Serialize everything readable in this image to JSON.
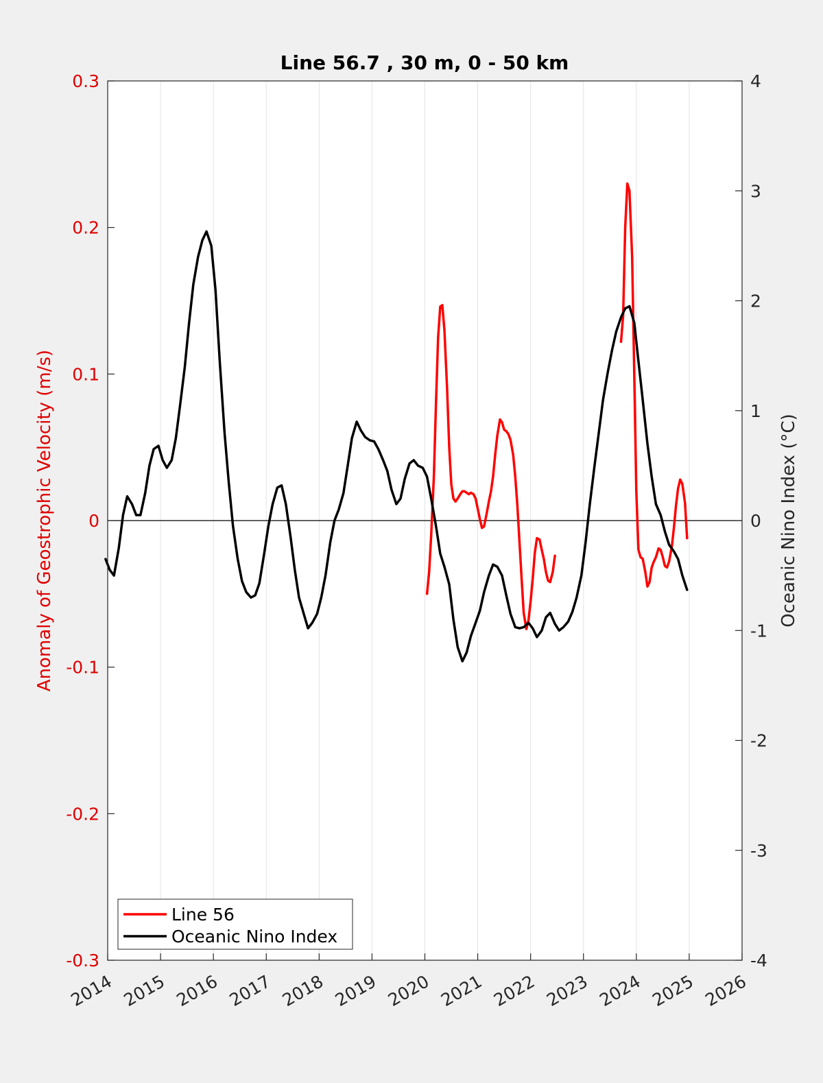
{
  "chart_data": {
    "type": "line",
    "title": "Line 56.7 , 30 m, 0 - 50 km",
    "xlabel": "",
    "ylabel_left": "Anomaly of Geostrophic Velocity (m/s)",
    "ylabel_right": "Oceanic Nino Index (°C)",
    "xlim": [
      2014,
      2026
    ],
    "ylim_left": [
      -0.3,
      0.3
    ],
    "ylim_right": [
      -4,
      4
    ],
    "x_ticks": [
      "2014",
      "2015",
      "2016",
      "2017",
      "2018",
      "2019",
      "2020",
      "2021",
      "2022",
      "2023",
      "2024",
      "2025",
      "2026"
    ],
    "y_ticks_left": [
      "0.3",
      "0.2",
      "0.1",
      "0",
      "-0.1",
      "-0.2",
      "-0.3"
    ],
    "y_ticks_right": [
      "4",
      "3",
      "2",
      "1",
      "0",
      "-1",
      "-2",
      "-3",
      "-4"
    ],
    "grid": "vertical",
    "zero_line": true,
    "legend_position": "bottom-left",
    "colors": {
      "line56": "#ff0000",
      "oni": "#000000",
      "left_axis": "#e00000",
      "right_axis": "#262626"
    },
    "series": [
      {
        "name": "Line 56",
        "axis": "left",
        "color": "#ff0000",
        "points": [
          [
            2020.04,
            -0.05
          ],
          [
            2020.08,
            -0.035
          ],
          [
            2020.12,
            -0.01
          ],
          [
            2020.17,
            0.03
          ],
          [
            2020.21,
            0.08
          ],
          [
            2020.25,
            0.125
          ],
          [
            2020.29,
            0.146
          ],
          [
            2020.33,
            0.147
          ],
          [
            2020.37,
            0.13
          ],
          [
            2020.42,
            0.09
          ],
          [
            2020.46,
            0.05
          ],
          [
            2020.5,
            0.025
          ],
          [
            2020.54,
            0.015
          ],
          [
            2020.58,
            0.013
          ],
          [
            2020.62,
            0.015
          ],
          [
            2020.67,
            0.018
          ],
          [
            2020.71,
            0.02
          ],
          [
            2020.75,
            0.02
          ],
          [
            2020.79,
            0.019
          ],
          [
            2020.83,
            0.018
          ],
          [
            2020.87,
            0.019
          ],
          [
            2020.92,
            0.018
          ],
          [
            2020.96,
            0.015
          ],
          [
            2021.0,
            0.008
          ],
          [
            2021.04,
            0.001
          ],
          [
            2021.08,
            -0.005
          ],
          [
            2021.12,
            -0.004
          ],
          [
            2021.17,
            0.005
          ],
          [
            2021.21,
            0.013
          ],
          [
            2021.25,
            0.02
          ],
          [
            2021.29,
            0.03
          ],
          [
            2021.33,
            0.045
          ],
          [
            2021.37,
            0.058
          ],
          [
            2021.42,
            0.069
          ],
          [
            2021.46,
            0.067
          ],
          [
            2021.5,
            0.062
          ],
          [
            2021.54,
            0.061
          ],
          [
            2021.58,
            0.059
          ],
          [
            2021.62,
            0.055
          ],
          [
            2021.67,
            0.045
          ],
          [
            2021.71,
            0.03
          ],
          [
            2021.75,
            0.01
          ],
          [
            2021.79,
            -0.015
          ],
          [
            2021.83,
            -0.04
          ],
          [
            2021.87,
            -0.063
          ],
          [
            2021.92,
            -0.074
          ],
          [
            2021.96,
            -0.068
          ],
          [
            2022.0,
            -0.055
          ],
          [
            2022.04,
            -0.04
          ],
          [
            2022.08,
            -0.022
          ],
          [
            2022.12,
            -0.012
          ],
          [
            2022.17,
            -0.013
          ],
          [
            2022.21,
            -0.02
          ],
          [
            2022.25,
            -0.026
          ],
          [
            2022.29,
            -0.035
          ],
          [
            2022.33,
            -0.041
          ],
          [
            2022.37,
            -0.042
          ],
          [
            2022.42,
            -0.035
          ],
          [
            2022.46,
            -0.024
          ],
          null,
          [
            2023.71,
            0.122
          ],
          [
            2023.75,
            0.14
          ],
          [
            2023.79,
            0.2
          ],
          [
            2023.83,
            0.23
          ],
          [
            2023.87,
            0.225
          ],
          [
            2023.92,
            0.18
          ],
          [
            2023.96,
            0.1
          ],
          [
            2024.0,
            0.02
          ],
          [
            2024.04,
            -0.02
          ],
          [
            2024.08,
            -0.025
          ],
          [
            2024.12,
            -0.026
          ],
          [
            2024.17,
            -0.035
          ],
          [
            2024.21,
            -0.045
          ],
          [
            2024.25,
            -0.042
          ],
          [
            2024.29,
            -0.032
          ],
          [
            2024.33,
            -0.028
          ],
          [
            2024.37,
            -0.025
          ],
          [
            2024.42,
            -0.019
          ],
          [
            2024.46,
            -0.02
          ],
          [
            2024.5,
            -0.025
          ],
          [
            2024.54,
            -0.031
          ],
          [
            2024.58,
            -0.032
          ],
          [
            2024.62,
            -0.028
          ],
          [
            2024.67,
            -0.018
          ],
          [
            2024.71,
            -0.005
          ],
          [
            2024.75,
            0.01
          ],
          [
            2024.79,
            0.022
          ],
          [
            2024.83,
            0.028
          ],
          [
            2024.87,
            0.025
          ],
          [
            2024.92,
            0.012
          ],
          [
            2024.96,
            -0.012
          ]
        ]
      },
      {
        "name": "Oceanic Nino Index",
        "axis": "right",
        "color": "#000000",
        "points": [
          [
            2013.96,
            -0.35
          ],
          [
            2014.04,
            -0.45
          ],
          [
            2014.12,
            -0.5
          ],
          [
            2014.21,
            -0.25
          ],
          [
            2014.29,
            0.05
          ],
          [
            2014.37,
            0.22
          ],
          [
            2014.46,
            0.15
          ],
          [
            2014.54,
            0.05
          ],
          [
            2014.62,
            0.05
          ],
          [
            2014.71,
            0.25
          ],
          [
            2014.79,
            0.5
          ],
          [
            2014.87,
            0.65
          ],
          [
            2014.96,
            0.68
          ],
          [
            2015.04,
            0.55
          ],
          [
            2015.12,
            0.48
          ],
          [
            2015.21,
            0.55
          ],
          [
            2015.29,
            0.75
          ],
          [
            2015.37,
            1.05
          ],
          [
            2015.46,
            1.4
          ],
          [
            2015.54,
            1.8
          ],
          [
            2015.62,
            2.15
          ],
          [
            2015.71,
            2.4
          ],
          [
            2015.79,
            2.55
          ],
          [
            2015.87,
            2.63
          ],
          [
            2015.96,
            2.5
          ],
          [
            2016.04,
            2.1
          ],
          [
            2016.12,
            1.45
          ],
          [
            2016.21,
            0.8
          ],
          [
            2016.29,
            0.35
          ],
          [
            2016.37,
            -0.05
          ],
          [
            2016.46,
            -0.35
          ],
          [
            2016.54,
            -0.55
          ],
          [
            2016.62,
            -0.65
          ],
          [
            2016.71,
            -0.7
          ],
          [
            2016.79,
            -0.68
          ],
          [
            2016.87,
            -0.57
          ],
          [
            2016.96,
            -0.3
          ],
          [
            2017.04,
            -0.05
          ],
          [
            2017.12,
            0.15
          ],
          [
            2017.21,
            0.3
          ],
          [
            2017.29,
            0.32
          ],
          [
            2017.37,
            0.15
          ],
          [
            2017.46,
            -0.15
          ],
          [
            2017.54,
            -0.45
          ],
          [
            2017.62,
            -0.7
          ],
          [
            2017.71,
            -0.85
          ],
          [
            2017.79,
            -0.98
          ],
          [
            2017.87,
            -0.93
          ],
          [
            2017.96,
            -0.85
          ],
          [
            2018.04,
            -0.7
          ],
          [
            2018.12,
            -0.5
          ],
          [
            2018.21,
            -0.2
          ],
          [
            2018.29,
            0.0
          ],
          [
            2018.37,
            0.1
          ],
          [
            2018.46,
            0.25
          ],
          [
            2018.54,
            0.5
          ],
          [
            2018.62,
            0.75
          ],
          [
            2018.71,
            0.9
          ],
          [
            2018.79,
            0.82
          ],
          [
            2018.87,
            0.76
          ],
          [
            2018.96,
            0.73
          ],
          [
            2019.04,
            0.72
          ],
          [
            2019.12,
            0.65
          ],
          [
            2019.21,
            0.55
          ],
          [
            2019.29,
            0.45
          ],
          [
            2019.37,
            0.28
          ],
          [
            2019.46,
            0.15
          ],
          [
            2019.54,
            0.2
          ],
          [
            2019.62,
            0.38
          ],
          [
            2019.71,
            0.52
          ],
          [
            2019.79,
            0.55
          ],
          [
            2019.87,
            0.5
          ],
          [
            2019.96,
            0.48
          ],
          [
            2020.04,
            0.4
          ],
          [
            2020.12,
            0.2
          ],
          [
            2020.21,
            -0.05
          ],
          [
            2020.29,
            -0.3
          ],
          [
            2020.37,
            -0.42
          ],
          [
            2020.46,
            -0.58
          ],
          [
            2020.54,
            -0.9
          ],
          [
            2020.62,
            -1.15
          ],
          [
            2020.71,
            -1.28
          ],
          [
            2020.79,
            -1.2
          ],
          [
            2020.87,
            -1.05
          ],
          [
            2020.96,
            -0.93
          ],
          [
            2021.04,
            -0.82
          ],
          [
            2021.12,
            -0.65
          ],
          [
            2021.21,
            -0.5
          ],
          [
            2021.29,
            -0.4
          ],
          [
            2021.37,
            -0.42
          ],
          [
            2021.46,
            -0.5
          ],
          [
            2021.54,
            -0.68
          ],
          [
            2021.62,
            -0.85
          ],
          [
            2021.71,
            -0.97
          ],
          [
            2021.79,
            -0.98
          ],
          [
            2021.87,
            -0.97
          ],
          [
            2021.96,
            -0.93
          ],
          [
            2022.04,
            -0.98
          ],
          [
            2022.12,
            -1.06
          ],
          [
            2022.21,
            -1.0
          ],
          [
            2022.29,
            -0.88
          ],
          [
            2022.37,
            -0.84
          ],
          [
            2022.46,
            -0.94
          ],
          [
            2022.54,
            -1.0
          ],
          [
            2022.62,
            -0.97
          ],
          [
            2022.71,
            -0.92
          ],
          [
            2022.79,
            -0.83
          ],
          [
            2022.87,
            -0.7
          ],
          [
            2022.96,
            -0.5
          ],
          [
            2023.04,
            -0.2
          ],
          [
            2023.12,
            0.15
          ],
          [
            2023.21,
            0.5
          ],
          [
            2023.29,
            0.8
          ],
          [
            2023.37,
            1.1
          ],
          [
            2023.46,
            1.35
          ],
          [
            2023.54,
            1.55
          ],
          [
            2023.62,
            1.72
          ],
          [
            2023.71,
            1.85
          ],
          [
            2023.79,
            1.93
          ],
          [
            2023.87,
            1.95
          ],
          [
            2023.96,
            1.8
          ],
          [
            2024.04,
            1.45
          ],
          [
            2024.12,
            1.1
          ],
          [
            2024.21,
            0.7
          ],
          [
            2024.29,
            0.4
          ],
          [
            2024.37,
            0.15
          ],
          [
            2024.46,
            0.05
          ],
          [
            2024.54,
            -0.1
          ],
          [
            2024.62,
            -0.22
          ],
          [
            2024.71,
            -0.28
          ],
          [
            2024.79,
            -0.35
          ],
          [
            2024.87,
            -0.5
          ],
          [
            2024.96,
            -0.63
          ]
        ]
      }
    ]
  }
}
